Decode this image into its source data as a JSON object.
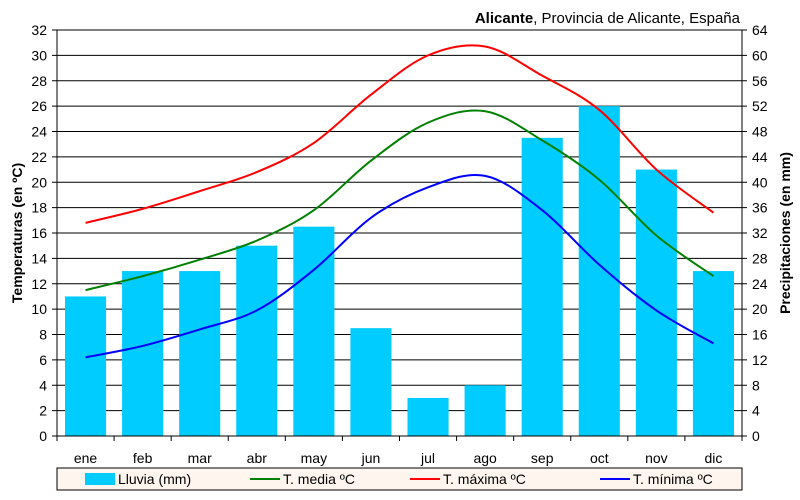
{
  "chart_data": {
    "type": "bar+line",
    "title_bold": "Alicante",
    "title_rest": ", Provincia de Alicante, España",
    "ylabel": "Temperaturas (en ºC)",
    "y2label": "Precipitaciones (en mm)",
    "ylim": [
      0,
      32
    ],
    "y2lim": [
      0,
      64
    ],
    "yticks": [
      0,
      2,
      4,
      6,
      8,
      10,
      12,
      14,
      16,
      18,
      20,
      22,
      24,
      26,
      28,
      30,
      32
    ],
    "y2ticks": [
      0,
      4,
      8,
      12,
      16,
      20,
      24,
      28,
      32,
      36,
      40,
      44,
      48,
      52,
      56,
      60,
      64
    ],
    "grid": true,
    "legend_position": "bottom",
    "categories": [
      "ene",
      "feb",
      "mar",
      "abr",
      "may",
      "jun",
      "jul",
      "ago",
      "sep",
      "oct",
      "nov",
      "dic"
    ],
    "bars": {
      "name": "Lluvia (mm)",
      "axis": "right",
      "color": "#00ccff",
      "values": [
        22,
        26,
        26,
        30,
        33,
        17,
        6,
        8,
        47,
        52,
        42,
        26
      ]
    },
    "series": [
      {
        "name": "T. media ºC",
        "color": "#008000",
        "values": [
          11.5,
          12.6,
          13.9,
          15.4,
          17.8,
          21.7,
          24.7,
          25.6,
          23.3,
          20.2,
          15.8,
          12.6
        ]
      },
      {
        "name": "T. máxima ºC",
        "color": "#ff0000",
        "values": [
          16.8,
          17.9,
          19.3,
          20.8,
          23.1,
          26.9,
          30.0,
          30.7,
          28.4,
          25.7,
          21.0,
          17.6
        ]
      },
      {
        "name": "T. mínima ºC",
        "color": "#0000ff",
        "values": [
          6.2,
          7.1,
          8.4,
          9.9,
          13.1,
          17.2,
          19.6,
          20.5,
          17.8,
          13.5,
          9.9,
          7.3
        ]
      }
    ]
  }
}
